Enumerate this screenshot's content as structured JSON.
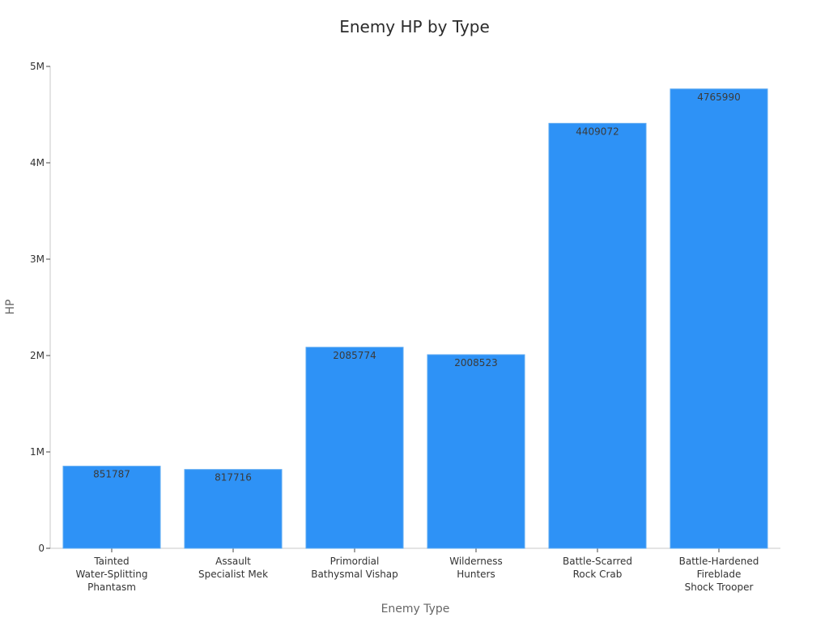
{
  "chart_data": {
    "type": "bar",
    "title": "Enemy HP by Type",
    "xlabel": "Enemy Type",
    "ylabel": "HP",
    "categories": [
      [
        "Tainted",
        "Water-Splitting",
        "Phantasm"
      ],
      [
        "Assault",
        "Specialist Mek"
      ],
      [
        "Primordial",
        "Bathysmal Vishap"
      ],
      [
        "Wilderness",
        "Hunters"
      ],
      [
        "Battle-Scarred",
        "Rock Crab"
      ],
      [
        "Battle-Hardened",
        "Fireblade",
        "Shock Trooper"
      ]
    ],
    "values": [
      851787,
      817716,
      2085774,
      2008523,
      4409072,
      4765990
    ],
    "value_labels": [
      "851787",
      "817716",
      "2085774",
      "2008523",
      "4409072",
      "4765990"
    ],
    "ylim": [
      0,
      5000000
    ],
    "yticks": [
      {
        "value": 0,
        "label": "0"
      },
      {
        "value": 1000000,
        "label": "1M"
      },
      {
        "value": 2000000,
        "label": "2M"
      },
      {
        "value": 3000000,
        "label": "3M"
      },
      {
        "value": 4000000,
        "label": "4M"
      },
      {
        "value": 5000000,
        "label": "5M"
      }
    ],
    "grid": false,
    "legend": "none",
    "colors": {
      "bar": "#2e92f6",
      "bar_edge": "#5aa8f2"
    }
  }
}
